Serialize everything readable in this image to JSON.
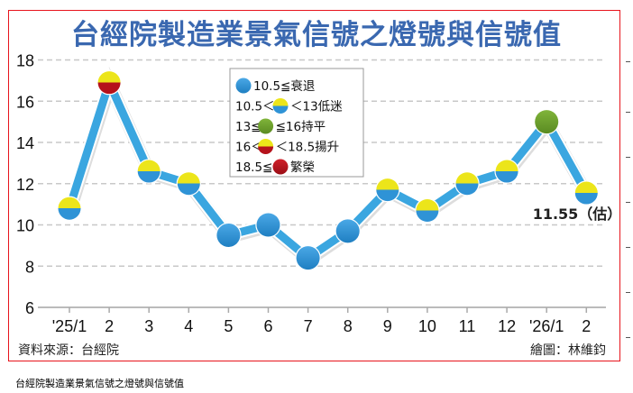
{
  "chart_data": {
    "type": "line",
    "title": "台經院製造業景氣信號之燈號與信號值",
    "categories": [
      "'25/1",
      "2",
      "3",
      "4",
      "5",
      "6",
      "7",
      "8",
      "9",
      "10",
      "11",
      "12",
      "'26/1",
      "2"
    ],
    "values": [
      10.8,
      16.9,
      12.6,
      12.0,
      9.5,
      10.0,
      8.4,
      9.7,
      11.7,
      10.7,
      12.0,
      12.6,
      15.0,
      11.55
    ],
    "signal": [
      "low",
      "rising",
      "low",
      "low",
      "recession",
      "recession",
      "recession",
      "recession",
      "low",
      "low",
      "low",
      "low",
      "stable",
      "low"
    ],
    "ylim": [
      6,
      18
    ],
    "yticks": [
      "6",
      "8",
      "10",
      "12",
      "14",
      "16",
      "18"
    ],
    "grid": true,
    "annotation": "11.55（估）",
    "legend": {
      "placement": "top-center",
      "items": [
        {
          "key": "recession",
          "pre": "",
          "post": "10.5≦衰退"
        },
        {
          "key": "low",
          "pre": "10.5＜",
          "post": "＜13低迷"
        },
        {
          "key": "stable",
          "pre": "13≦",
          "post": "≦16持平"
        },
        {
          "key": "rising",
          "pre": "16＜",
          "post": "＜18.5揚升"
        },
        {
          "key": "boom",
          "pre": "18.5≦",
          "post": "繁榮"
        }
      ]
    },
    "colors": {
      "line": "#3aa6e0",
      "blue": "#2f93d6",
      "yellow": "#ece51a",
      "green": "#6a9e2c",
      "red": "#b5121b",
      "title": "#3a68b0",
      "frame": "#e8141c"
    }
  },
  "footer": {
    "source": "資料來源：台經院",
    "credit": "繪圖：林維鈞"
  },
  "caption": "台經院製造業景氣信號之燈號與信號值"
}
